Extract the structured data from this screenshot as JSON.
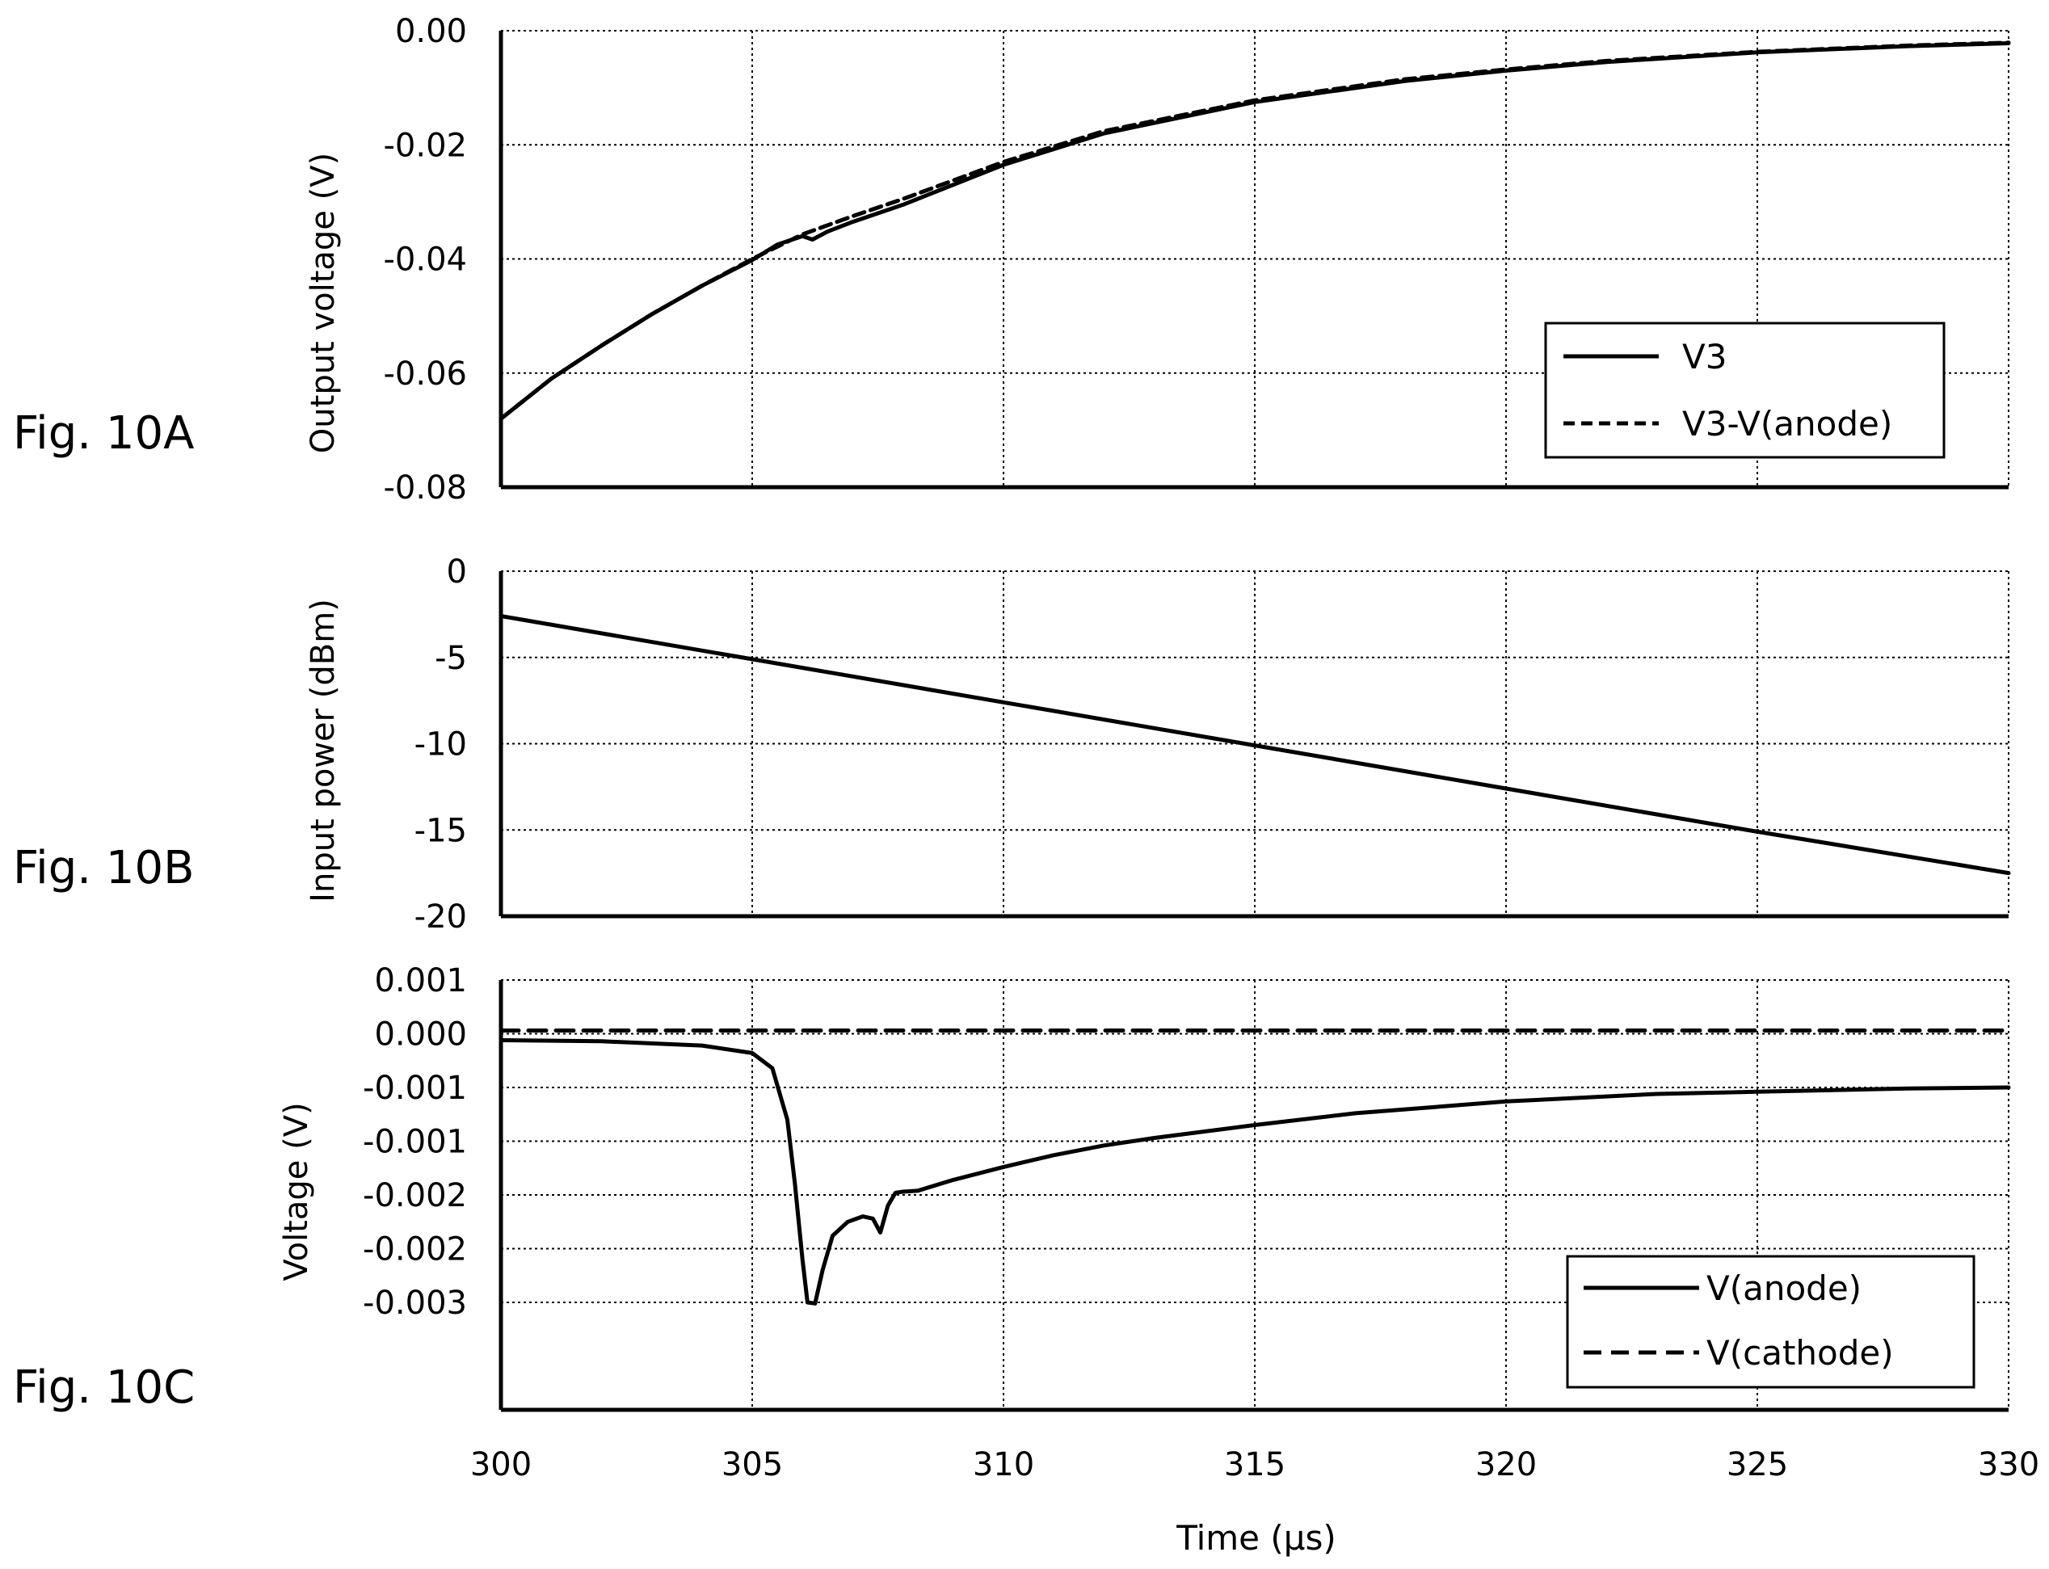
{
  "x_axis": {
    "label": "Time (μs)",
    "ticks": [
      "300",
      "305",
      "310",
      "315",
      "320",
      "325",
      "330"
    ],
    "range": [
      300,
      330
    ]
  },
  "chart_data": [
    {
      "type": "line",
      "figure_label": "Fig. 10A",
      "ylabel": "Output voltage (V)",
      "xlabel": "",
      "xlim": [
        300,
        330
      ],
      "ylim": [
        -0.08,
        0.0
      ],
      "yticks": [
        "0.00",
        "-0.02",
        "-0.04",
        "-0.06",
        "-0.08"
      ],
      "ytick_values": [
        0.0,
        -0.02,
        -0.04,
        -0.06,
        -0.08
      ],
      "grid": true,
      "legend_position": "lower-right",
      "series": [
        {
          "name": "V3",
          "style": "solid",
          "x": [
            300,
            301,
            302,
            303,
            304,
            305,
            305.5,
            306,
            306.2,
            306.5,
            307,
            308,
            310,
            312,
            315,
            318,
            320,
            322,
            325,
            328,
            330
          ],
          "y": [
            -0.068,
            -0.061,
            -0.0552,
            -0.0497,
            -0.0447,
            -0.0402,
            -0.0375,
            -0.036,
            -0.0366,
            -0.0352,
            -0.0335,
            -0.0305,
            -0.0235,
            -0.018,
            -0.0125,
            -0.0088,
            -0.007,
            -0.0055,
            -0.0038,
            -0.0027,
            -0.0022
          ]
        },
        {
          "name": "V3-V(anode)",
          "style": "dashed",
          "x": [
            300,
            301,
            302,
            303,
            304,
            305,
            306,
            307,
            308,
            310,
            312,
            315,
            318,
            320,
            322,
            325,
            328,
            330
          ],
          "y": [
            -0.068,
            -0.061,
            -0.0552,
            -0.0497,
            -0.0447,
            -0.04,
            -0.0357,
            -0.0325,
            -0.0295,
            -0.023,
            -0.0176,
            -0.0122,
            -0.0085,
            -0.0068,
            -0.0053,
            -0.0037,
            -0.0026,
            -0.0021
          ]
        }
      ]
    },
    {
      "type": "line",
      "figure_label": "Fig. 10B",
      "ylabel": "Input power (dBm)",
      "xlabel": "",
      "xlim": [
        300,
        330
      ],
      "ylim": [
        -20,
        0
      ],
      "yticks": [
        "0",
        "-5",
        "-10",
        "-15",
        "-20"
      ],
      "ytick_values": [
        0,
        -5,
        -10,
        -15,
        -20
      ],
      "grid": true,
      "series": [
        {
          "name": "",
          "style": "solid",
          "x": [
            300,
            305,
            310,
            315,
            320,
            325,
            330
          ],
          "y": [
            -2.6,
            -5.1,
            -7.6,
            -10.1,
            -12.6,
            -15.1,
            -17.5
          ]
        }
      ]
    },
    {
      "type": "line",
      "figure_label": "Fig. 10C",
      "ylabel": "Voltage (V)",
      "xlabel": "Time (μs)",
      "xlim": [
        300,
        330
      ],
      "ylim": [
        -0.003,
        0.001
      ],
      "yticks": [
        "0.001",
        "0.000",
        "-0.001",
        "-0.001",
        "-0.002",
        "-0.002",
        "-0.003"
      ],
      "ytick_values": [
        0.001,
        0.0005,
        0.0,
        -0.0005,
        -0.001,
        -0.0015,
        -0.002
      ],
      "grid": true,
      "legend_position": "lower-right",
      "series": [
        {
          "name": "V(anode)",
          "style": "solid",
          "x": [
            300,
            302,
            304,
            305,
            305.4,
            305.7,
            305.85,
            306.0,
            306.1,
            306.25,
            306.4,
            306.6,
            306.9,
            307.2,
            307.4,
            307.55,
            307.7,
            307.85,
            308.0,
            308.3,
            309,
            310,
            311,
            312,
            313,
            315,
            317,
            320,
            323,
            325,
            328,
            330
          ],
          "y": [
            0.00044,
            0.00043,
            0.00039,
            0.00032,
            0.00018,
            -0.0003,
            -0.0009,
            -0.0016,
            -0.002,
            -0.00201,
            -0.0017,
            -0.00138,
            -0.00125,
            -0.0012,
            -0.00122,
            -0.00135,
            -0.0011,
            -0.00098,
            -0.00097,
            -0.00096,
            -0.00086,
            -0.00074,
            -0.00063,
            -0.00054,
            -0.00047,
            -0.00035,
            -0.00024,
            -0.00013,
            -6e-05,
            -4e-05,
            -1e-05,
            0.0
          ]
        },
        {
          "name": "V(cathode)",
          "style": "dashed",
          "x": [
            300,
            330
          ],
          "y": [
            0.00053,
            0.00053
          ]
        }
      ]
    }
  ]
}
